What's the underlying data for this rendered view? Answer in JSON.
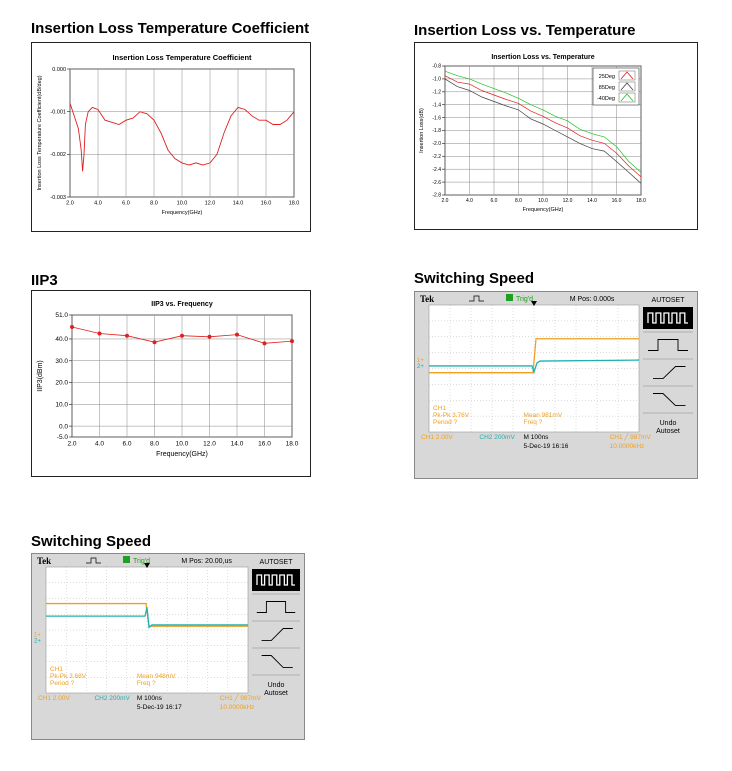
{
  "sections": {
    "il_coef_title": "Insertion Loss Temperature Coefficient",
    "il_temp_title": "Insertion Loss vs. Temperature",
    "iip3_title": "IIP3",
    "switch1_title": "Switching Speed",
    "switch2_title": "Switching Speed"
  },
  "chart_data": [
    {
      "id": "il_coef",
      "type": "line",
      "title": "Insertion Loss Temperature Coefficient",
      "xlabel": "Frequency(GHz)",
      "ylabel": "Insertion Loss Temperature Coefficient(dB/deg)",
      "xlim": [
        2.0,
        18.0
      ],
      "ylim": [
        -0.003,
        0.0
      ],
      "xticks": [
        "2.0",
        "4.0",
        "6.0",
        "8.0",
        "10.0",
        "12.0",
        "14.0",
        "16.0",
        "18.0"
      ],
      "yticks": [
        "0.000",
        "-0.001",
        "-0.002",
        "-0.003"
      ],
      "grid": true,
      "color": "#e02020",
      "series": [
        {
          "x": [
            2.0,
            2.3,
            2.6,
            2.8,
            2.9,
            3.0,
            3.1,
            3.3,
            3.6,
            4.0,
            4.5,
            5.0,
            5.5,
            6.0,
            6.5,
            7.0,
            7.5,
            8.0,
            8.5,
            9.0,
            9.5,
            10.0,
            10.5,
            11.0,
            11.5,
            12.0,
            12.5,
            13.0,
            13.5,
            14.0,
            14.5,
            15.0,
            15.5,
            16.0,
            16.5,
            17.0,
            17.5,
            18.0
          ],
          "y": [
            -0.0008,
            -0.0011,
            -0.0014,
            -0.0019,
            -0.0024,
            -0.002,
            -0.0013,
            -0.001,
            -0.0009,
            -0.00095,
            -0.0012,
            -0.00125,
            -0.0013,
            -0.0012,
            -0.00115,
            -0.001,
            -0.00105,
            -0.0012,
            -0.0015,
            -0.0019,
            -0.0021,
            -0.0022,
            -0.00225,
            -0.0022,
            -0.00225,
            -0.0022,
            -0.002,
            -0.0015,
            -0.0011,
            -0.0009,
            -0.00095,
            -0.0011,
            -0.0012,
            -0.0012,
            -0.0013,
            -0.0013,
            -0.0012,
            -0.001
          ]
        }
      ]
    },
    {
      "id": "il_temp",
      "type": "line",
      "title": "Insertion Loss vs. Temperature",
      "xlabel": "Frequency(GHz)",
      "ylabel": "Insertion Loss(dB)",
      "xlim": [
        2.0,
        18.0
      ],
      "ylim": [
        -2.8,
        -0.8
      ],
      "xticks": [
        "2.0",
        "4.0",
        "6.0",
        "8.0",
        "10.0",
        "12.0",
        "14.0",
        "16.0",
        "18.0"
      ],
      "yticks": [
        "-0.8",
        "-1.0",
        "-1.2",
        "-1.4",
        "-1.6",
        "-1.8",
        "-2.0",
        "-2.2",
        "-2.4",
        "-2.6",
        "-2.8"
      ],
      "grid": true,
      "legend": "top-right",
      "series": [
        {
          "name": "25Deg",
          "color": "#e02020",
          "x": [
            2,
            3,
            4,
            5,
            6,
            7,
            8,
            9,
            10,
            11,
            12,
            13,
            14,
            15,
            16,
            17,
            18
          ],
          "y": [
            -0.95,
            -1.05,
            -1.08,
            -1.18,
            -1.25,
            -1.32,
            -1.38,
            -1.5,
            -1.58,
            -1.68,
            -1.76,
            -1.88,
            -1.95,
            -2.0,
            -2.15,
            -2.35,
            -2.52
          ]
        },
        {
          "name": "85Deg",
          "color": "#404040",
          "x": [
            2,
            3,
            4,
            5,
            6,
            7,
            8,
            9,
            10,
            11,
            12,
            13,
            14,
            15,
            16,
            17,
            18
          ],
          "y": [
            -1.0,
            -1.12,
            -1.18,
            -1.28,
            -1.35,
            -1.42,
            -1.48,
            -1.62,
            -1.7,
            -1.8,
            -1.9,
            -2.0,
            -2.08,
            -2.12,
            -2.28,
            -2.45,
            -2.62
          ]
        },
        {
          "name": "-40Deg",
          "color": "#20c020",
          "x": [
            2,
            3,
            4,
            5,
            6,
            7,
            8,
            9,
            10,
            11,
            12,
            13,
            14,
            15,
            16,
            17,
            18
          ],
          "y": [
            -0.88,
            -0.95,
            -1.0,
            -1.08,
            -1.15,
            -1.22,
            -1.3,
            -1.4,
            -1.48,
            -1.58,
            -1.65,
            -1.78,
            -1.85,
            -1.9,
            -2.05,
            -2.28,
            -2.45
          ]
        }
      ]
    },
    {
      "id": "iip3",
      "type": "line",
      "title": "IIP3 vs. Frequency",
      "xlabel": "Frequency(GHz)",
      "ylabel": "IIP3(dBm)",
      "xlim": [
        2.0,
        18.0
      ],
      "ylim": [
        -5.0,
        51.0
      ],
      "xticks": [
        "2.0",
        "4.0",
        "6.0",
        "8.0",
        "10.0",
        "12.0",
        "14.0",
        "16.0",
        "18.0"
      ],
      "yticks": [
        [
          "51.0",
          51
        ],
        [
          "40.0",
          40
        ],
        [
          "30.0",
          30
        ],
        [
          "20.0",
          20
        ],
        [
          "10.0",
          10
        ],
        [
          "0.0",
          0
        ],
        [
          "-5.0",
          -5
        ]
      ],
      "grid": true,
      "color": "#e02020",
      "series": [
        {
          "x": [
            2,
            4,
            6,
            8,
            10,
            12,
            14,
            16,
            18
          ],
          "y": [
            45.5,
            42.5,
            41.5,
            38.5,
            41.5,
            41.0,
            42.0,
            38.0,
            39.0
          ]
        }
      ]
    }
  ],
  "scope1": {
    "brand": "Tek",
    "trig": "Trig'd",
    "mpos": "M Pos: 0.000s",
    "autoset": "AUTOSET",
    "undo1": "Undo",
    "undo2": "Autoset",
    "ch1_name": "CH1",
    "pkpk": "Pk-Pk 3.76V",
    "period": "Period ?",
    "mean": "Mean 981mV",
    "freq": "Freq ?",
    "ch1_scale": "CH1  2.00V",
    "ch2_scale": "CH2  200mV",
    "timebase": "M 100ns",
    "date": "5-Dec-19 16:16",
    "trig_level": "CH1 ╱ 987mV",
    "trig_freq": "10.0000kHz",
    "marker1": "1+",
    "marker2": "2+"
  },
  "scope2": {
    "brand": "Tek",
    "trig": "Trig'd",
    "mpos": "M Pos: 20.00,us",
    "autoset": "AUTOSET",
    "undo1": "Undo",
    "undo2": "Autoset",
    "ch1_name": "CH1",
    "pkpk": "Pk-Pk 3.68V",
    "period": "Period ?",
    "mean": "Mean 948mV",
    "freq": "Freq ?",
    "ch1_scale": "CH1  2.00V",
    "ch2_scale": "CH2  200mV",
    "timebase": "M 100ns",
    "date": "5-Dec-19 16:17",
    "trig_level": "CH1 ╱ 987mV",
    "trig_freq": "10.0000kHz",
    "marker1": "1+",
    "marker2": "2+"
  },
  "colors": {
    "ch1": "#f0a020",
    "ch2": "#20b0b0",
    "trig": "#20a020",
    "plot_red": "#e02020"
  }
}
